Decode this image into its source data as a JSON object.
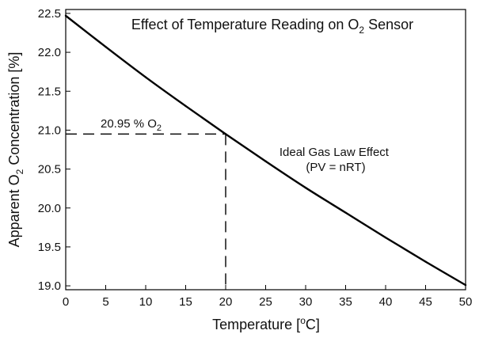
{
  "chart_data": {
    "type": "line",
    "title": {
      "pre": "Effect of Temperature Reading on O",
      "sub": "2",
      "post": " Sensor"
    },
    "xlabel": {
      "pre": "Temperature [",
      "sup": "o",
      "post": "C]"
    },
    "ylabel": {
      "pre": "Apparent O",
      "sub": "2",
      "post": " Concentration [%]"
    },
    "xlim": [
      0,
      50
    ],
    "ylim": [
      18.95,
      22.55
    ],
    "x_ticks": [
      0,
      5,
      10,
      15,
      20,
      25,
      30,
      35,
      40,
      45,
      50
    ],
    "y_ticks": [
      19.0,
      19.5,
      20.0,
      20.5,
      21.0,
      21.5,
      22.0,
      22.5
    ],
    "y_tick_labels": [
      "19.0",
      "19.5",
      "20.0",
      "20.5",
      "21.0",
      "21.5",
      "22.0",
      "22.5"
    ],
    "grid": false,
    "series": [
      {
        "name": "Ideal Gas Law Effect",
        "x": [
          0,
          5,
          10,
          15,
          20,
          25,
          30,
          35,
          40,
          45,
          50
        ],
        "y": [
          22.47,
          22.07,
          21.68,
          21.31,
          20.95,
          20.6,
          20.26,
          19.94,
          19.62,
          19.31,
          19.01
        ]
      }
    ],
    "reference": {
      "x": 20,
      "y": 20.95,
      "label": {
        "pre": "20.95 % O",
        "sub": "2"
      }
    },
    "annotation": {
      "line1": "Ideal Gas Law Effect",
      "line2": "(PV = nRT)"
    },
    "colors": {
      "line": "#000000",
      "axis": "#000000",
      "text": "#111111",
      "background": "#ffffff"
    }
  }
}
